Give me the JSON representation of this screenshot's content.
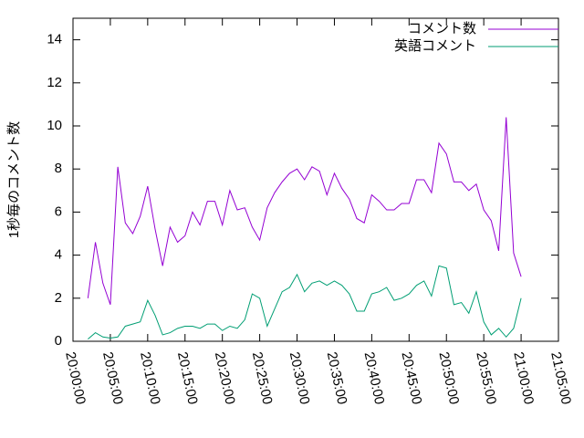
{
  "chart_data": {
    "type": "line",
    "ylabel": "1秒毎のコメント数",
    "x": [
      "20:02:00",
      "20:03:00",
      "20:04:00",
      "20:05:00",
      "20:06:00",
      "20:07:00",
      "20:08:00",
      "20:09:00",
      "20:10:00",
      "20:11:00",
      "20:12:00",
      "20:13:00",
      "20:14:00",
      "20:15:00",
      "20:16:00",
      "20:17:00",
      "20:18:00",
      "20:19:00",
      "20:20:00",
      "20:21:00",
      "20:22:00",
      "20:23:00",
      "20:24:00",
      "20:25:00",
      "20:26:00",
      "20:27:00",
      "20:28:00",
      "20:29:00",
      "20:30:00",
      "20:31:00",
      "20:32:00",
      "20:33:00",
      "20:34:00",
      "20:35:00",
      "20:36:00",
      "20:37:00",
      "20:38:00",
      "20:39:00",
      "20:40:00",
      "20:41:00",
      "20:42:00",
      "20:43:00",
      "20:44:00",
      "20:45:00",
      "20:46:00",
      "20:47:00",
      "20:48:00",
      "20:49:00",
      "20:50:00",
      "20:51:00",
      "20:52:00",
      "20:53:00",
      "20:54:00",
      "20:55:00",
      "20:56:00",
      "20:57:00",
      "20:58:00",
      "20:59:00",
      "21:00:00"
    ],
    "series": [
      {
        "name": "コメント数",
        "color": "#9400d3",
        "values": [
          2.0,
          4.6,
          2.7,
          1.7,
          8.1,
          5.5,
          5.0,
          5.8,
          7.2,
          5.2,
          3.5,
          5.3,
          4.6,
          4.9,
          6.0,
          5.4,
          6.5,
          6.5,
          5.4,
          7.0,
          6.1,
          6.2,
          5.3,
          4.7,
          6.2,
          6.9,
          7.4,
          7.8,
          8.0,
          7.5,
          8.1,
          7.9,
          6.8,
          7.8,
          7.1,
          6.6,
          5.7,
          5.5,
          6.8,
          6.5,
          6.1,
          6.1,
          6.4,
          6.4,
          7.5,
          7.5,
          6.9,
          9.2,
          8.7,
          7.4,
          7.4,
          7.0,
          7.3,
          6.1,
          5.6,
          4.2,
          10.4,
          4.1,
          3.0
        ]
      },
      {
        "name": "英語コメント",
        "color": "#009e73",
        "values": [
          0.1,
          0.4,
          0.2,
          0.15,
          0.2,
          0.7,
          0.8,
          0.9,
          1.9,
          1.2,
          0.3,
          0.4,
          0.6,
          0.7,
          0.7,
          0.6,
          0.8,
          0.8,
          0.5,
          0.7,
          0.6,
          1.0,
          2.2,
          2.0,
          0.7,
          1.5,
          2.3,
          2.5,
          3.1,
          2.3,
          2.7,
          2.8,
          2.6,
          2.8,
          2.6,
          2.2,
          1.4,
          1.4,
          2.2,
          2.3,
          2.5,
          1.9,
          2.0,
          2.2,
          2.6,
          2.8,
          2.1,
          3.5,
          3.4,
          1.7,
          1.8,
          1.3,
          2.3,
          0.9,
          0.3,
          0.6,
          0.2,
          0.6,
          2.0
        ]
      }
    ],
    "xlim": [
      "20:00:00",
      "21:05:00"
    ],
    "xticks": [
      "20:00:00",
      "20:05:00",
      "20:10:00",
      "20:15:00",
      "20:20:00",
      "20:25:00",
      "20:30:00",
      "20:35:00",
      "20:40:00",
      "20:45:00",
      "20:50:00",
      "20:55:00",
      "21:00:00",
      "21:05:00"
    ],
    "ylim": [
      0,
      15
    ],
    "yticks": [
      0,
      2,
      4,
      6,
      8,
      10,
      12,
      14
    ],
    "legend": "top-right"
  }
}
